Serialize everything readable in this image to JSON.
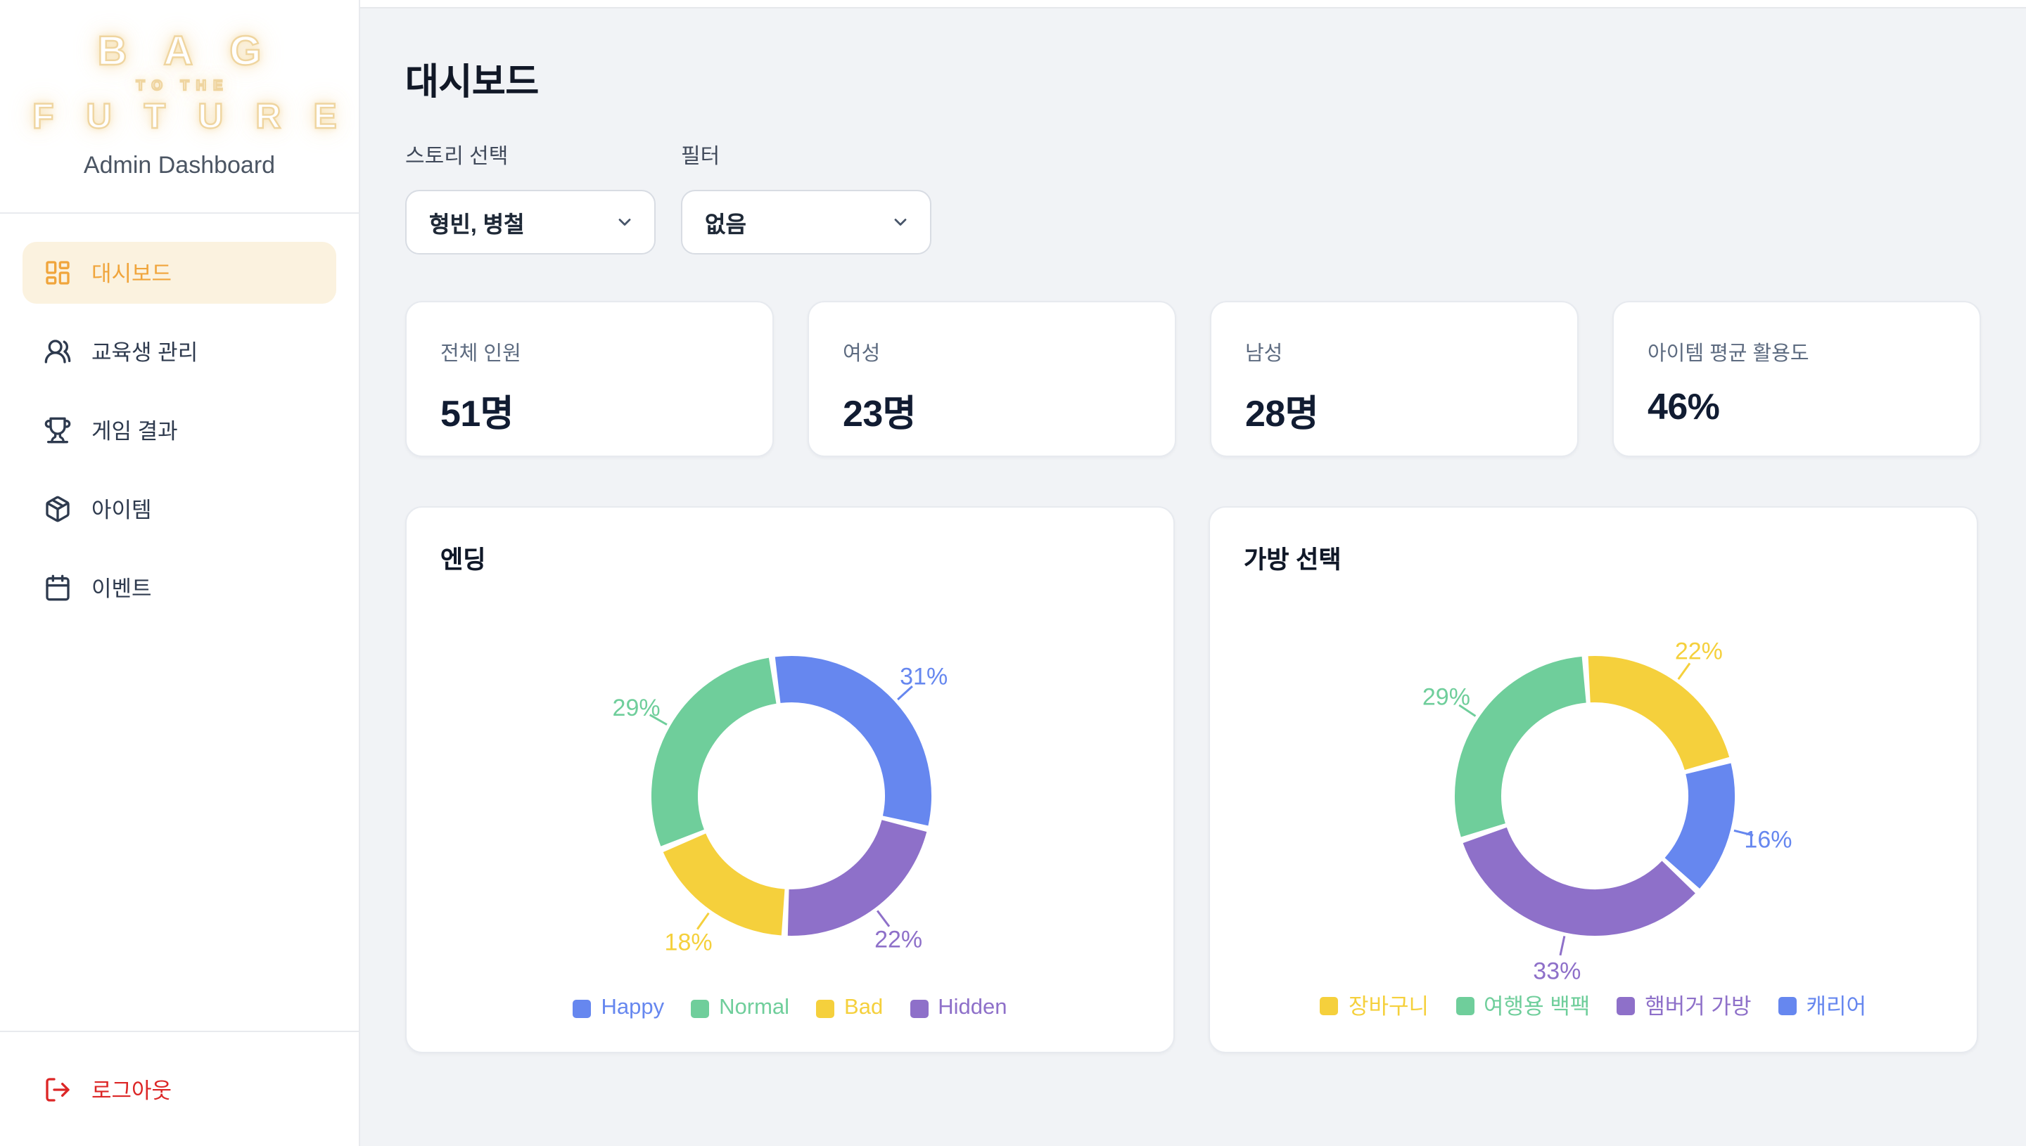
{
  "sidebar": {
    "logo": {
      "line1": "BAG",
      "line2": "TO THE",
      "line3": "FUTURE"
    },
    "subtitle": "Admin Dashboard",
    "items": [
      {
        "label": "대시보드",
        "icon": "layout-dashboard-icon",
        "active": true
      },
      {
        "label": "교육생 관리",
        "icon": "users-icon",
        "active": false
      },
      {
        "label": "게임 결과",
        "icon": "trophy-icon",
        "active": false
      },
      {
        "label": "아이템",
        "icon": "package-icon",
        "active": false
      },
      {
        "label": "이벤트",
        "icon": "calendar-icon",
        "active": false
      }
    ],
    "logout_label": "로그아웃"
  },
  "page": {
    "title": "대시보드"
  },
  "controls": {
    "story_label": "스토리 선택",
    "story_value": "형빈, 병철",
    "filter_label": "필터",
    "filter_value": "없음"
  },
  "stats": [
    {
      "label": "전체 인원",
      "value": "51명"
    },
    {
      "label": "여성",
      "value": "23명"
    },
    {
      "label": "남성",
      "value": "28명"
    },
    {
      "label": "아이템 평균 활용도",
      "value": "46%"
    }
  ],
  "theme": {
    "accent": "#F0A53C",
    "accent_bg": "#FBF2DF",
    "danger": "#DC2626"
  },
  "chart_data": [
    {
      "type": "pie",
      "subtype": "donut",
      "title": "엔딩",
      "labels": [
        "Happy",
        "Normal",
        "Bad",
        "Hidden"
      ],
      "values": [
        31,
        29,
        18,
        22
      ],
      "unit": "percent",
      "colors": [
        "#6687EF",
        "#6FCE9B",
        "#F5D03C",
        "#8E70C9"
      ],
      "draw_order": [
        0,
        3,
        2,
        1
      ],
      "start_angle_deg": -8,
      "legend_position": "bottom",
      "data_labels": [
        "31%",
        "29%",
        "18%",
        "22%"
      ]
    },
    {
      "type": "pie",
      "subtype": "donut",
      "title": "가방 선택",
      "labels": [
        "장바구니",
        "여행용 백팩",
        "햄버거 가방",
        "캐리어"
      ],
      "values": [
        22,
        29,
        33,
        16
      ],
      "unit": "percent",
      "colors": [
        "#F5D03C",
        "#6FCE9B",
        "#8E70C9",
        "#6687EF"
      ],
      "draw_order": [
        0,
        3,
        2,
        1
      ],
      "start_angle_deg": -4,
      "legend_position": "bottom",
      "data_labels": [
        "22%",
        "29%",
        "33%",
        "16%"
      ]
    }
  ]
}
